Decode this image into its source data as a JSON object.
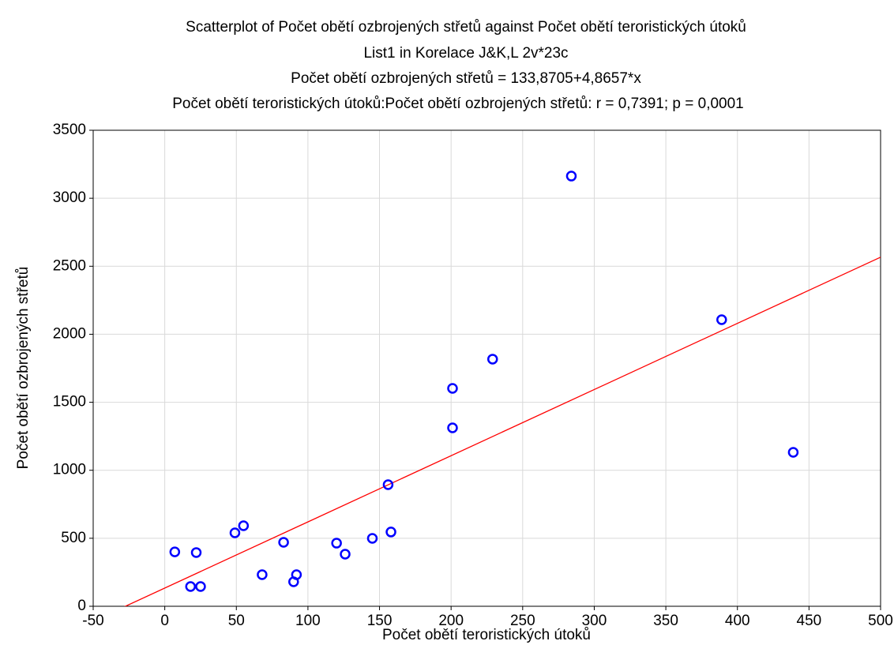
{
  "chart_data": {
    "type": "scatter",
    "title": "Scatterplot of Počet obětí ozbrojených střetů against Počet obětí teroristických útoků",
    "subtitle": "List1 in Korelace J&K,L 2v*23c",
    "equation": "Počet obětí ozbrojených střetů = 133,8705+4,8657*x",
    "correlation": "Počet obětí teroristických útoků:Počet obětí ozbrojených střetů:   r = 0,7391; p = 0,0001",
    "x_label": "Počet obětí teroristických útoků",
    "y_label": "Počet obětí ozbrojených střetů",
    "x": [
      7,
      22,
      18,
      25,
      49,
      55,
      68,
      83,
      90,
      92,
      120,
      126,
      145,
      156,
      158,
      201,
      201,
      229,
      284,
      389,
      439
    ],
    "y": [
      400,
      395,
      145,
      145,
      540,
      592,
      232,
      470,
      180,
      232,
      464,
      383,
      499,
      894,
      546,
      1602,
      1312,
      1817,
      3163,
      2107,
      1132
    ],
    "color": "#0000ff",
    "fit": {
      "intercept": 133.8705,
      "slope": 4.8657,
      "color": "#ff0000"
    },
    "xlim": [
      -50,
      500
    ],
    "xticks": [
      -50,
      0,
      50,
      100,
      150,
      200,
      250,
      300,
      350,
      400,
      450,
      500
    ],
    "ylim": [
      0,
      3500
    ],
    "yticks": [
      0,
      500,
      1000,
      1500,
      2000,
      2500,
      3000,
      3500
    ],
    "grid": true
  }
}
